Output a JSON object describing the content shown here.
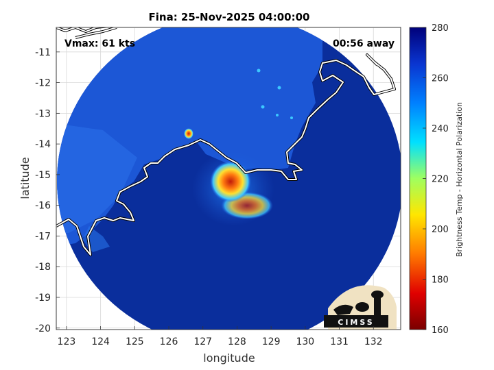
{
  "chart_data": {
    "type": "heatmap",
    "title": "Fina: 25-Nov-2025 04:00:00",
    "xlabel": "longitude",
    "ylabel": "latitude",
    "xlim": [
      122.7,
      132.8
    ],
    "ylim": [
      -20.05,
      -10.2
    ],
    "xticks": [
      "123",
      "124",
      "125",
      "126",
      "127",
      "128",
      "129",
      "130",
      "131",
      "132"
    ],
    "yticks": [
      "-11",
      "-12",
      "-13",
      "-14",
      "-15",
      "-16",
      "-17",
      "-18",
      "-19",
      "-20"
    ],
    "grid": true,
    "annotations": {
      "vmax": "Vmax: 61 kts",
      "away": "00:56 away"
    },
    "colorbar": {
      "label": "Brightness Temp - Horizontal Polarization",
      "range": [
        160,
        280
      ],
      "ticks": [
        "160",
        "180",
        "200",
        "220",
        "240",
        "260",
        "280"
      ]
    },
    "swath_center": {
      "lon": 127.8,
      "lat": -14.9
    },
    "storm_core": {
      "lon": 127.8,
      "lat": -15.3,
      "min_tb": 185
    },
    "colors": {
      "background_tb": "#0a2e9c",
      "land_tb": "#1e5ad9",
      "coast": "#ffffff"
    },
    "logo_text": "CIMSS"
  }
}
